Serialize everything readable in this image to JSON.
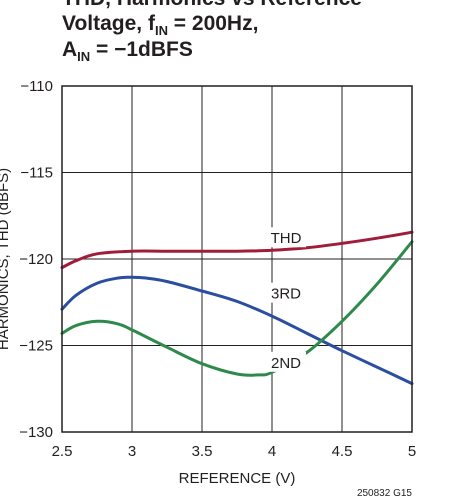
{
  "chart_data": {
    "type": "line",
    "title_lines": [
      {
        "text": "THD, Harmonics vs Reference"
      },
      {
        "text": "Voltage, f",
        "sub": "IN",
        "after": " = 200Hz,"
      },
      {
        "text": "A",
        "sub": "IN",
        "after": " = −1dBFS"
      }
    ],
    "xlabel": "REFERENCE  (V)",
    "ylabel": "HARMONICS, THD (dBFS)",
    "xlim": [
      2.5,
      5
    ],
    "ylim": [
      -130,
      -110
    ],
    "x_ticks": [
      2.5,
      3,
      3.5,
      4,
      4.5,
      5
    ],
    "x_tick_labels": [
      "2.5",
      "3",
      "3.5",
      "4",
      "4.5",
      "5"
    ],
    "y_ticks": [
      -110,
      -115,
      -120,
      -125,
      -130
    ],
    "y_tick_labels": [
      "−110",
      "−115",
      "−120",
      "−125",
      "−130"
    ],
    "grid": true,
    "figure_code": "250832 G15",
    "series": [
      {
        "name": "THD",
        "color": "#a01d3a",
        "x": [
          2.5,
          2.6,
          2.75,
          3.0,
          3.25,
          3.5,
          3.75,
          4.0,
          4.25,
          4.5,
          4.75,
          5.0
        ],
        "y": [
          -120.5,
          -120.1,
          -119.7,
          -119.55,
          -119.55,
          -119.55,
          -119.55,
          -119.5,
          -119.35,
          -119.1,
          -118.8,
          -118.45
        ]
      },
      {
        "name": "3RD",
        "color": "#2b4ea0",
        "x": [
          2.5,
          2.6,
          2.75,
          2.9,
          3.0,
          3.1,
          3.25,
          3.5,
          3.75,
          4.0,
          4.25,
          4.5,
          4.75,
          5.0
        ],
        "y": [
          -122.9,
          -122.1,
          -121.4,
          -121.1,
          -121.05,
          -121.1,
          -121.3,
          -121.85,
          -122.45,
          -123.3,
          -124.3,
          -125.3,
          -126.25,
          -127.2
        ]
      },
      {
        "name": "2ND",
        "color": "#2e8a4a",
        "x": [
          2.5,
          2.6,
          2.75,
          2.9,
          3.0,
          3.25,
          3.5,
          3.75,
          3.9,
          4.0,
          4.25,
          4.5,
          4.75,
          5.0
        ],
        "y": [
          -124.3,
          -123.85,
          -123.6,
          -123.75,
          -124.1,
          -125.1,
          -126.05,
          -126.65,
          -126.7,
          -126.55,
          -125.4,
          -123.6,
          -121.45,
          -119.0
        ]
      }
    ],
    "series_labels": [
      {
        "series": "THD",
        "x": 4.1,
        "y": -118.8
      },
      {
        "series": "3RD",
        "x": 4.1,
        "y": -122.0
      },
      {
        "series": "2ND",
        "x": 4.1,
        "y": -126.0
      }
    ]
  }
}
